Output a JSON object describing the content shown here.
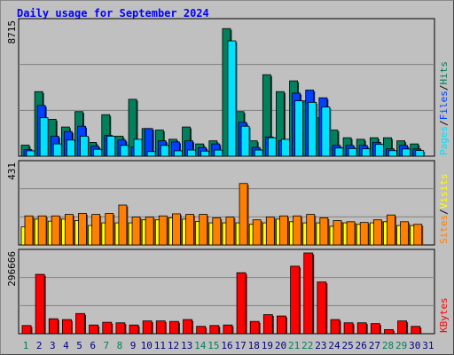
{
  "title": "Daily usage for September 2024",
  "colors": {
    "hits": "#00805c",
    "files": "#0040ff",
    "pages": "#00e0ff",
    "visits": "#ffff00",
    "sites": "#ff8000",
    "kbytes": "#ff0000",
    "weekend_label": "#00805c",
    "weekday_label": "#000080"
  },
  "chart_data": [
    {
      "type": "bar",
      "title": "Daily usage for September 2024",
      "axis_max_label": "8715",
      "ylim": [
        0,
        8715
      ],
      "categories": [
        "1",
        "2",
        "3",
        "4",
        "5",
        "6",
        "7",
        "8",
        "9",
        "10",
        "11",
        "12",
        "13",
        "14",
        "15",
        "16",
        "17",
        "18",
        "19",
        "20",
        "21",
        "22",
        "23",
        "24",
        "25",
        "26",
        "27",
        "28",
        "29",
        "30",
        "31"
      ],
      "weekend": [
        "1",
        "7",
        "8",
        "14",
        "15",
        "21",
        "22",
        "28",
        "29"
      ],
      "series": [
        {
          "name": "Hits",
          "values": [
            720,
            4200,
            2400,
            1900,
            2900,
            900,
            2700,
            1300,
            3700,
            1800,
            1700,
            1100,
            1900,
            800,
            1000,
            8300,
            2900,
            1000,
            5300,
            4200,
            4900,
            3600,
            2500,
            1700,
            1200,
            1100,
            1200,
            1200,
            1000,
            800,
            0
          ]
        },
        {
          "name": "Files",
          "values": [
            430,
            3300,
            1300,
            1600,
            1950,
            650,
            1350,
            1050,
            600,
            1800,
            1000,
            930,
            1000,
            560,
            800,
            0,
            2200,
            570,
            1250,
            1000,
            4100,
            4300,
            3800,
            700,
            700,
            700,
            900,
            480,
            700,
            470,
            0
          ]
        },
        {
          "name": "Pages",
          "values": [
            350,
            2500,
            800,
            1050,
            1300,
            450,
            1300,
            700,
            1100,
            300,
            700,
            350,
            400,
            330,
            400,
            7500,
            1950,
            400,
            1200,
            1100,
            3600,
            3500,
            3200,
            530,
            500,
            480,
            770,
            360,
            470,
            370,
            0
          ]
        }
      ],
      "legend": [
        "Hits",
        "Files",
        "Pages"
      ]
    },
    {
      "type": "bar",
      "axis_max_label": "431",
      "ylim": [
        0,
        431
      ],
      "categories": [
        "1",
        "2",
        "3",
        "4",
        "5",
        "6",
        "7",
        "8",
        "9",
        "10",
        "11",
        "12",
        "13",
        "14",
        "15",
        "16",
        "17",
        "18",
        "19",
        "20",
        "21",
        "22",
        "23",
        "24",
        "25",
        "26",
        "27",
        "28",
        "29",
        "30",
        "31"
      ],
      "series": [
        {
          "name": "Visits",
          "values": [
            96,
            138,
            127,
            138,
            130,
            104,
            118,
            118,
            118,
            134,
            134,
            145,
            138,
            126,
            118,
            118,
            118,
            110,
            118,
            138,
            124,
            118,
            118,
            100,
            118,
            110,
            118,
            124,
            104,
            104,
            0
          ]
        },
        {
          "name": "Sites",
          "values": [
            155,
            155,
            155,
            163,
            168,
            163,
            168,
            213,
            149,
            149,
            155,
            166,
            163,
            163,
            145,
            149,
            328,
            134,
            149,
            155,
            155,
            163,
            145,
            130,
            124,
            120,
            134,
            160,
            124,
            110,
            0
          ]
        }
      ],
      "legend": [
        "Visits",
        "Sites"
      ]
    },
    {
      "type": "bar",
      "axis_max_label": "296666",
      "ylim": [
        0,
        296666
      ],
      "categories": [
        "1",
        "2",
        "3",
        "4",
        "5",
        "6",
        "7",
        "8",
        "9",
        "10",
        "11",
        "12",
        "13",
        "14",
        "15",
        "16",
        "17",
        "18",
        "19",
        "20",
        "21",
        "22",
        "23",
        "24",
        "25",
        "26",
        "27",
        "28",
        "29",
        "30",
        "31"
      ],
      "series": [
        {
          "name": "KBytes",
          "values": [
            30000,
            218000,
            55000,
            52000,
            74000,
            32000,
            42000,
            40000,
            32000,
            47000,
            47000,
            45000,
            52000,
            27000,
            30000,
            32000,
            224000,
            45000,
            70000,
            65000,
            248000,
            296666,
            190000,
            52000,
            40000,
            40000,
            37000,
            15000,
            47000,
            27000,
            0
          ]
        }
      ],
      "legend": [
        "KBytes"
      ]
    }
  ]
}
